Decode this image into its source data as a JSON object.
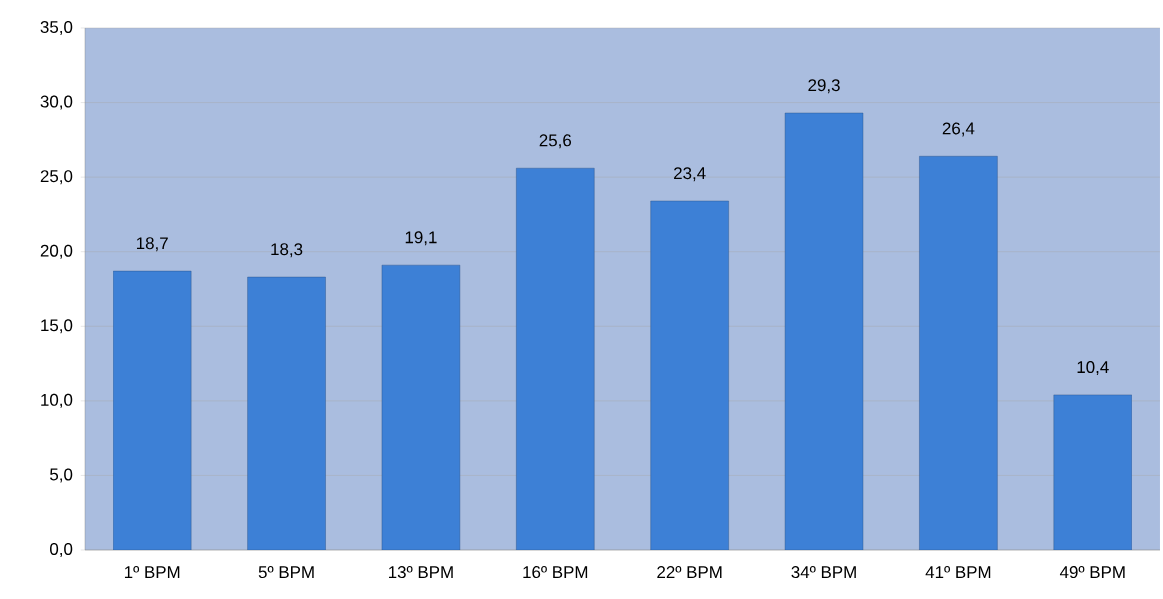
{
  "chart_data": {
    "type": "bar",
    "categories": [
      "1º BPM",
      "5º BPM",
      "13º BPM",
      "16º BPM",
      "22º BPM",
      "34º BPM",
      "41º BPM",
      "49º BPM"
    ],
    "values": [
      18.7,
      18.3,
      19.1,
      25.6,
      23.4,
      29.3,
      26.4,
      10.4
    ],
    "value_labels": [
      "18,7",
      "18,3",
      "19,1",
      "25,6",
      "23,4",
      "29,3",
      "26,4",
      "10,4"
    ],
    "color": "#3d80d6",
    "ylim": [
      0,
      35
    ],
    "yticks": [
      {
        "value": 0,
        "label": "0,0"
      },
      {
        "value": 5,
        "label": "5,0"
      },
      {
        "value": 10,
        "label": "10,0"
      },
      {
        "value": 15,
        "label": "15,0"
      },
      {
        "value": 20,
        "label": "20,0"
      },
      {
        "value": 25,
        "label": "25,0"
      },
      {
        "value": 30,
        "label": "30,0"
      },
      {
        "value": 35,
        "label": "35,0"
      }
    ],
    "grid": "y"
  }
}
